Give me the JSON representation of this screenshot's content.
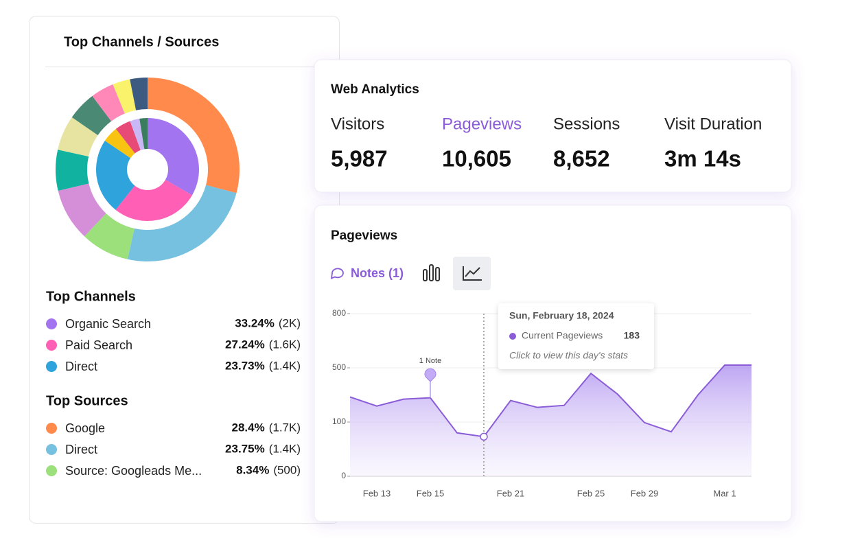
{
  "channels_card": {
    "title": "Top Channels / Sources"
  },
  "analytics_card": {
    "title": "Web Analytics",
    "metrics": [
      {
        "label": "Visitors",
        "value": "5,987"
      },
      {
        "label": "Pageviews",
        "value": "10,605"
      },
      {
        "label": "Sessions",
        "value": "8,652"
      },
      {
        "label": "Visit Duration",
        "value": "3m 14s"
      }
    ]
  },
  "pageviews_card": {
    "title": "Pageviews",
    "notes_button": "Notes (1)"
  },
  "chart_data": [
    {
      "type": "donut",
      "rings": [
        {
          "name": "Top Channels",
          "categories": [
            "Organic Search",
            "Paid Search",
            "Direct",
            null,
            null,
            null,
            null
          ],
          "values": [
            33.24,
            27.24,
            23.73,
            5,
            5,
            3,
            2.5
          ],
          "value_labels": [
            "33.24%",
            "27.24%",
            "23.73%",
            null,
            null,
            null,
            null
          ],
          "counts": [
            2000,
            1600,
            1400,
            null,
            null,
            null,
            null
          ],
          "count_labels": [
            "(2K)",
            "(1.6K)",
            "(1.4K)",
            null,
            null,
            null,
            null
          ],
          "colors": [
            "#a374f0",
            "#ff5fb4",
            "#2fa3dc",
            "#f9c311",
            "#e84a78",
            "#c9b8f5",
            "#3a7d5e"
          ]
        },
        {
          "name": "Top Sources",
          "categories": [
            "Google",
            "Direct",
            "Source: Googleads Me...",
            null,
            null,
            null,
            null,
            null,
            null,
            null
          ],
          "values": [
            28.4,
            23.75,
            8.34,
            9,
            7,
            6,
            5,
            4,
            3,
            3
          ],
          "value_labels": [
            "28.4%",
            "23.75%",
            "8.34%",
            null,
            null,
            null,
            null,
            null,
            null,
            null
          ],
          "counts": [
            1700,
            1400,
            500,
            null,
            null,
            null,
            null,
            null,
            null,
            null
          ],
          "count_labels": [
            "(1.7K)",
            "(1.4K)",
            "(500)",
            null,
            null,
            null,
            null,
            null,
            null,
            null
          ],
          "colors": [
            "#ff8a4c",
            "#76c0e0",
            "#9be07a",
            "#d58fd8",
            "#12b2a0",
            "#e6e4a0",
            "#4a8a74",
            "#ff88b8",
            "#f9f26a",
            "#3d5a80"
          ]
        }
      ]
    },
    {
      "type": "area",
      "categories": [
        null,
        "Feb 13",
        null,
        "Feb 15",
        null,
        null,
        "Feb 21",
        null,
        null,
        "Feb 25",
        null,
        "Feb 29",
        null,
        null,
        "Mar 1",
        null
      ],
      "series": [
        {
          "name": "Current Pageviews",
          "color": "#8a5cd8",
          "values": [
            285,
            218,
            269,
            279,
            80,
            73,
            259,
            208,
            223,
            459,
            305,
            99,
            82,
            300,
            515,
            515
          ]
        }
      ],
      "ylim": [
        0,
        800
      ],
      "yticks": [
        0,
        100,
        500,
        800
      ],
      "grid": true,
      "note": "1 Note",
      "tooltip": {
        "date": "Sun, February 18, 2024",
        "series": "Current Pageviews",
        "value": 183,
        "hint": "Click to view this day's stats"
      }
    }
  ]
}
